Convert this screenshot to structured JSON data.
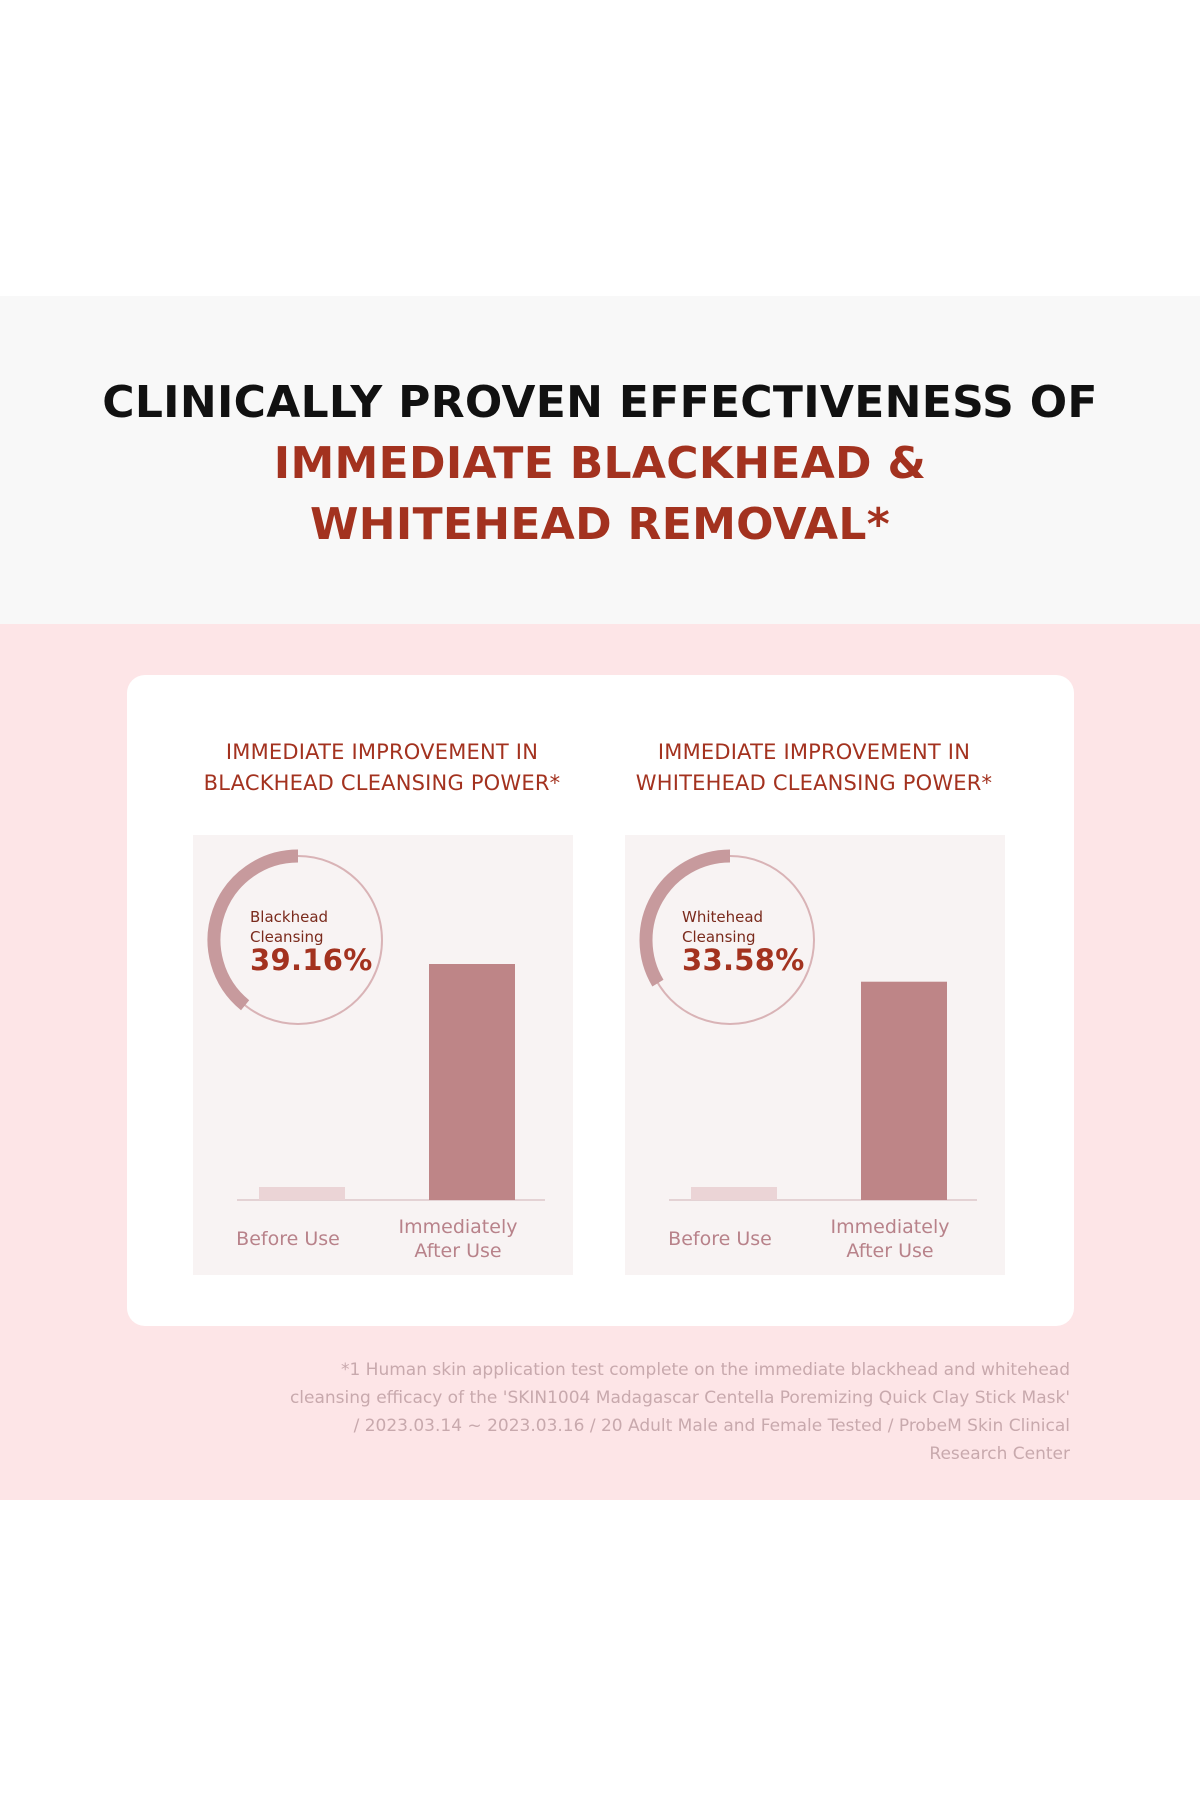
{
  "headline": {
    "line1": "CLINICALLY PROVEN EFFECTIVENESS OF",
    "line2": "IMMEDIATE BLACKHEAD &",
    "line3": "WHITEHEAD REMOVAL*"
  },
  "colors": {
    "accent": "#a3321f",
    "bar": "#be8587",
    "bar_before": "#ebd4d6",
    "donut": "#c79a9d",
    "pink_band": "#fde5e7"
  },
  "chart_data": [
    {
      "type": "bar",
      "title_line1": "IMMEDIATE IMPROVEMENT IN",
      "title_line2": "BLACKHEAD CLEANSING POWER*",
      "categories": [
        "Before Use",
        "Immediately After Use"
      ],
      "category_lines": [
        [
          "Before Use"
        ],
        [
          "Immediately",
          "After Use"
        ]
      ],
      "values": [
        5.5,
        100
      ],
      "ylim": [
        0,
        100
      ],
      "callout": {
        "label_line1": "Blackhead",
        "label_line2": "Cleansing",
        "value": "39.16%"
      }
    },
    {
      "type": "bar",
      "title_line1": "IMMEDIATE IMPROVEMENT IN",
      "title_line2": "WHITEHEAD CLEANSING POWER*",
      "categories": [
        "Before Use",
        "Immediately After Use"
      ],
      "category_lines": [
        [
          "Before Use"
        ],
        [
          "Immediately",
          "After Use"
        ]
      ],
      "values": [
        5.5,
        92.5
      ],
      "ylim": [
        0,
        100
      ],
      "callout": {
        "label_line1": "Whitehead",
        "label_line2": "Cleansing",
        "value": "33.58%"
      }
    }
  ],
  "footnote": {
    "line1": "*1 Human skin application test complete on the immediate blackhead and whitehead",
    "line2": "cleansing efficacy of the 'SKIN1004 Madagascar Centella Poremizing Quick Clay Stick Mask'",
    "line3": "/ 2023.03.14 ~ 2023.03.16 / 20 Adult Male and Female Tested / ProbeM Skin Clinical",
    "line4": "Research Center"
  }
}
